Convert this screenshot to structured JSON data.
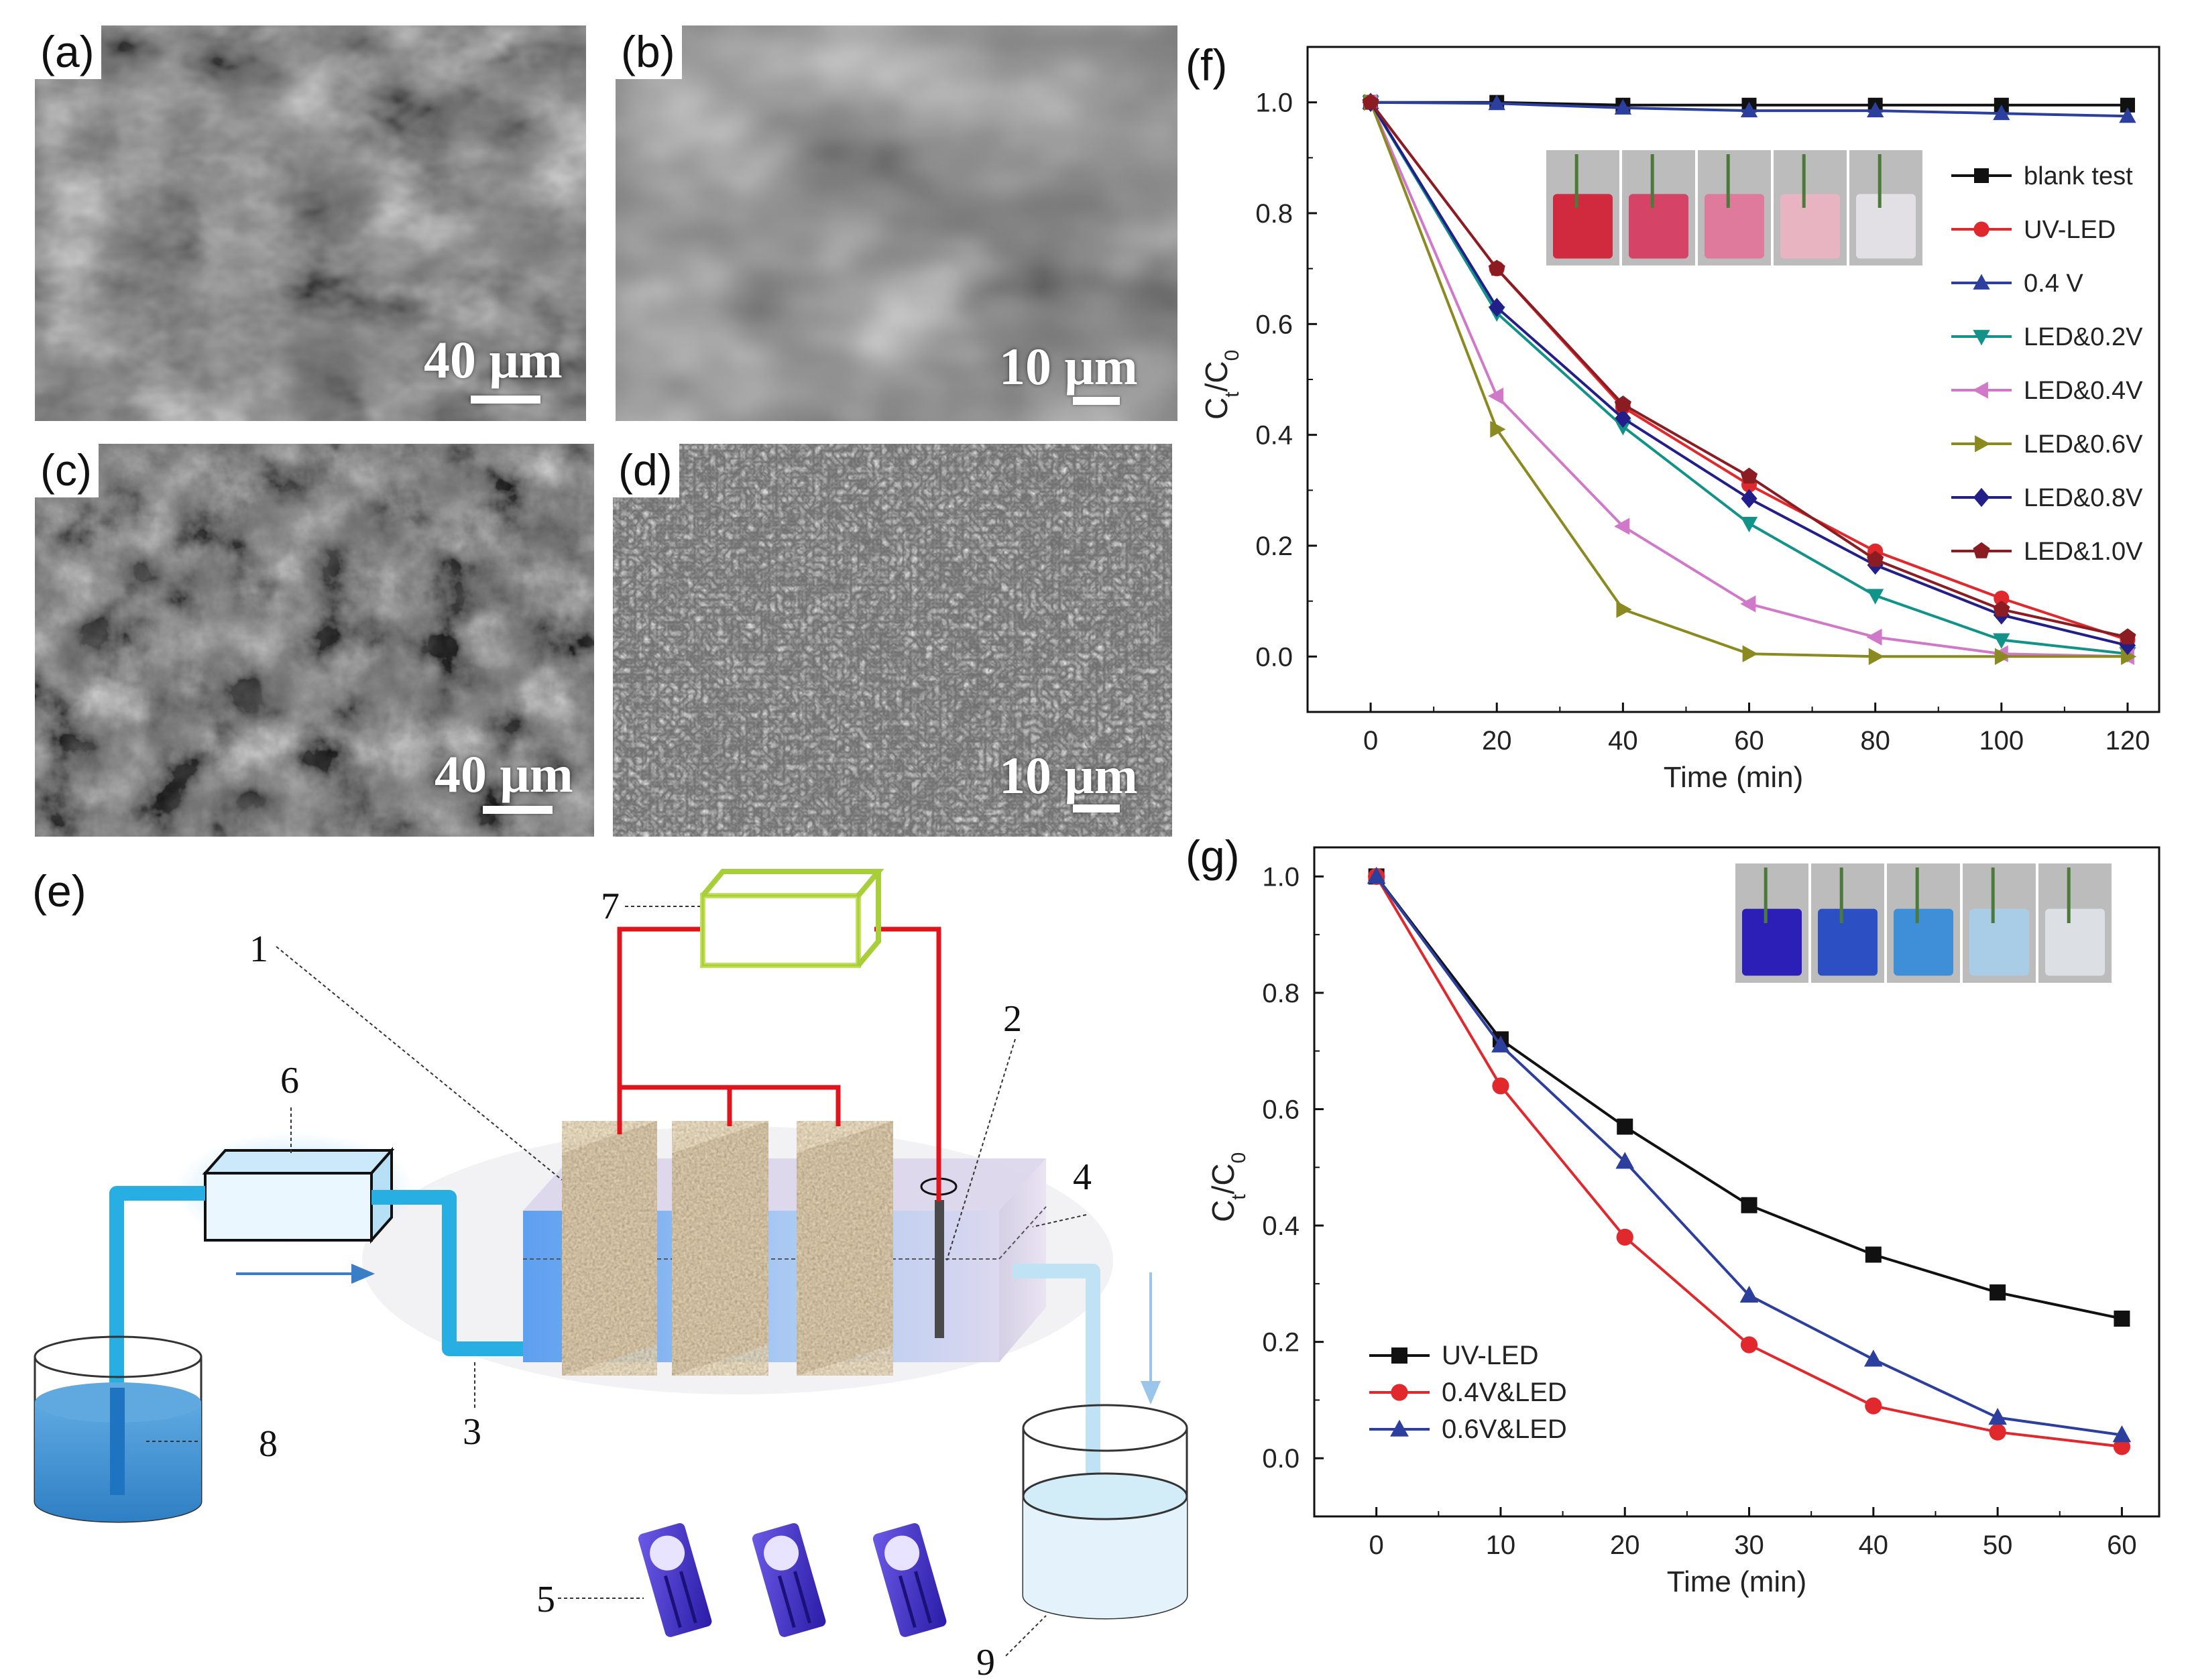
{
  "panels": {
    "a": {
      "tag": "(a)",
      "scale": "40 μm"
    },
    "b": {
      "tag": "(b)",
      "scale": "10 μm"
    },
    "c": {
      "tag": "(c)",
      "scale": "40 μm"
    },
    "d": {
      "tag": "(d)",
      "scale": "10 μm"
    },
    "e": {
      "tag": "(e)",
      "labels": [
        "1",
        "2",
        "3",
        "4",
        "5",
        "6",
        "7",
        "8",
        "9"
      ]
    },
    "f": {
      "tag": "(f)"
    },
    "g": {
      "tag": "(g)"
    }
  },
  "colors": {
    "black": "#111111",
    "red": "#e0282d",
    "blue": "#2c3e9e",
    "teal": "#12938a",
    "pink": "#d179c9",
    "olive": "#8b8a21",
    "navy": "#231f8a",
    "darkred": "#8b1c22",
    "wire": "#e1141e",
    "pipe": "#27aee3",
    "water": "#3c8fcf"
  },
  "chart_data": [
    {
      "type": "line",
      "panel": "f",
      "xlabel": "Time (min)",
      "ylabel": "Ct/C0",
      "xlim": [
        -10,
        125
      ],
      "ylim": [
        -0.1,
        1.1
      ],
      "xticks": [
        "0",
        "20",
        "40",
        "60",
        "80",
        "100",
        "120"
      ],
      "yticks": [
        "0.0",
        "0.2",
        "0.4",
        "0.6",
        "0.8",
        "1.0"
      ],
      "x": [
        0,
        20,
        40,
        60,
        80,
        100,
        120
      ],
      "legend_position": "right",
      "series": [
        {
          "name": "blank test",
          "color": "black",
          "marker": "square",
          "values": [
            1.0,
            1.0,
            0.995,
            0.995,
            0.995,
            0.995,
            0.995
          ]
        },
        {
          "name": "UV-LED",
          "color": "red",
          "marker": "circle",
          "values": [
            1.0,
            0.7,
            0.45,
            0.31,
            0.19,
            0.105,
            0.03
          ]
        },
        {
          "name": "0.4 V",
          "color": "blue",
          "marker": "triangle-up",
          "values": [
            1.0,
            0.998,
            0.99,
            0.985,
            0.985,
            0.98,
            0.975
          ]
        },
        {
          "name": "LED&0.2V",
          "color": "teal",
          "marker": "triangle-down",
          "values": [
            1.0,
            0.62,
            0.415,
            0.24,
            0.11,
            0.03,
            0.005
          ]
        },
        {
          "name": "LED&0.4V",
          "color": "pink",
          "marker": "triangle-left",
          "values": [
            1.0,
            0.47,
            0.235,
            0.095,
            0.035,
            0.005,
            0.0
          ]
        },
        {
          "name": "LED&0.6V",
          "color": "olive",
          "marker": "triangle-right",
          "values": [
            1.0,
            0.41,
            0.085,
            0.005,
            0.0,
            0.0,
            0.0
          ]
        },
        {
          "name": "LED&0.8V",
          "color": "navy",
          "marker": "diamond",
          "values": [
            1.0,
            0.63,
            0.43,
            0.285,
            0.165,
            0.075,
            0.02
          ]
        },
        {
          "name": "LED&1.0V",
          "color": "darkred",
          "marker": "pentagon",
          "values": [
            1.0,
            0.7,
            0.455,
            0.325,
            0.175,
            0.085,
            0.035
          ]
        }
      ]
    },
    {
      "type": "line",
      "panel": "g",
      "xlabel": "Time (min)",
      "ylabel": "Ct/C0",
      "xlim": [
        -5,
        63
      ],
      "ylim": [
        -0.1,
        1.05
      ],
      "xticks": [
        "0",
        "10",
        "20",
        "30",
        "40",
        "50",
        "60"
      ],
      "yticks": [
        "0.0",
        "0.2",
        "0.4",
        "0.6",
        "0.8",
        "1.0"
      ],
      "x": [
        0,
        10,
        20,
        30,
        40,
        50,
        60
      ],
      "legend_position": "bottom-left",
      "series": [
        {
          "name": "UV-LED",
          "color": "black",
          "marker": "square",
          "values": [
            1.0,
            0.72,
            0.57,
            0.435,
            0.35,
            0.285,
            0.24
          ]
        },
        {
          "name": "0.4V&LED",
          "color": "red",
          "marker": "circle",
          "values": [
            1.0,
            0.64,
            0.38,
            0.195,
            0.09,
            0.045,
            0.02
          ]
        },
        {
          "name": "0.6V&LED",
          "color": "blue",
          "marker": "triangle-up",
          "values": [
            1.0,
            0.71,
            0.51,
            0.28,
            0.17,
            0.07,
            0.04
          ]
        }
      ]
    }
  ]
}
